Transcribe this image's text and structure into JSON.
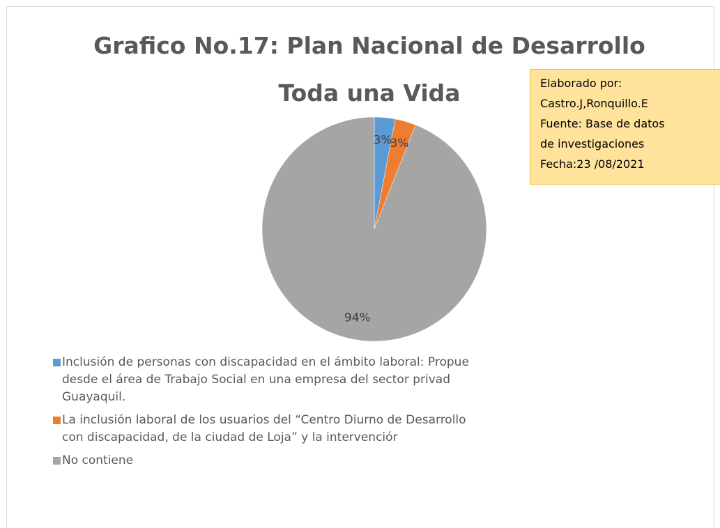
{
  "chart_data": {
    "type": "pie",
    "title": [
      "Grafico No.17: Plan Nacional de Desarrollo",
      "Toda una Vida"
    ],
    "categories": [
      "Inclusión de personas con discapacidad en el ámbito laboral: Propue\ndesde el área de Trabajo Social en una empresa del sector privad\nGuayaquil.",
      "La inclusión laboral de los usuarios del “Centro Diurno de Desarrollo\ncon discapacidad, de la ciudad de Loja” y la intervenciór",
      "No contiene"
    ],
    "values": [
      3,
      3,
      94
    ],
    "value_labels": [
      "3%",
      "3%",
      "94%"
    ],
    "colors": [
      "#5b9bd5",
      "#ed7d31",
      "#a5a5a5"
    ],
    "note": [
      "Elaborado por:",
      "Castro.J,Ronquillo.E",
      "Fuente: Base de datos",
      "de investigaciones",
      "Fecha:23 /08/2021"
    ]
  }
}
